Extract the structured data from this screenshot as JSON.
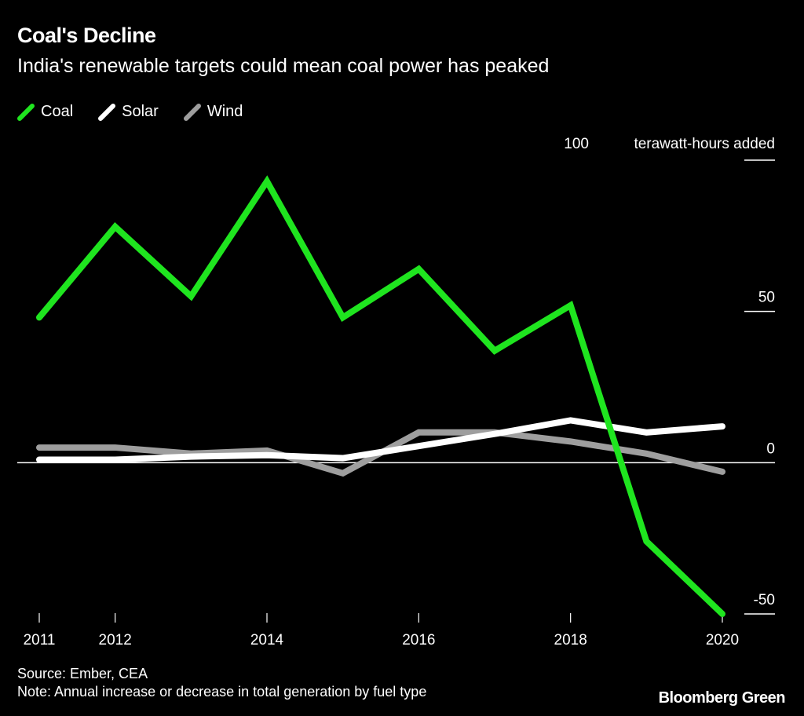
{
  "header": {
    "title": "Coal's Decline",
    "subtitle": "India's renewable targets could mean coal power has peaked"
  },
  "legend": [
    {
      "label": "Coal",
      "color": "#1fe51f",
      "icon": "diagonal-line-swatch"
    },
    {
      "label": "Solar",
      "color": "#ffffff",
      "icon": "diagonal-line-swatch"
    },
    {
      "label": "Wind",
      "color": "#9e9e9e",
      "icon": "diagonal-line-swatch"
    }
  ],
  "footer": {
    "source": "Source: Ember, CEA",
    "note": "Note: Annual increase or decrease in total generation by fuel type",
    "brand": "Bloomberg Green"
  },
  "chart_data": {
    "type": "line",
    "title": "Coal's Decline",
    "subtitle": "India's renewable targets could mean coal power has peaked",
    "xlabel": "",
    "ylabel": "terawatt-hours added",
    "unit_label": "terawatt-hours added",
    "x": [
      2011,
      2012,
      2013,
      2014,
      2015,
      2016,
      2017,
      2018,
      2019,
      2020
    ],
    "x_ticks": [
      "2011",
      "2012",
      "2014",
      "2016",
      "2018",
      "2020"
    ],
    "y_ticks": [
      "100",
      "50",
      "0",
      "-50"
    ],
    "ylim": [
      -50,
      100
    ],
    "grid": false,
    "legend_position": "top-left",
    "series": [
      {
        "name": "Coal",
        "color": "#1fe51f",
        "values": [
          48,
          78,
          55,
          93,
          48,
          64,
          37,
          52,
          -26,
          -50
        ]
      },
      {
        "name": "Solar",
        "color": "#ffffff",
        "values": [
          1,
          1,
          2,
          2.5,
          1.5,
          5.5,
          9.5,
          14,
          10,
          12
        ]
      },
      {
        "name": "Wind",
        "color": "#9e9e9e",
        "values": [
          5,
          5,
          3,
          4,
          -3.5,
          10,
          10,
          7,
          3,
          -3
        ]
      }
    ]
  }
}
